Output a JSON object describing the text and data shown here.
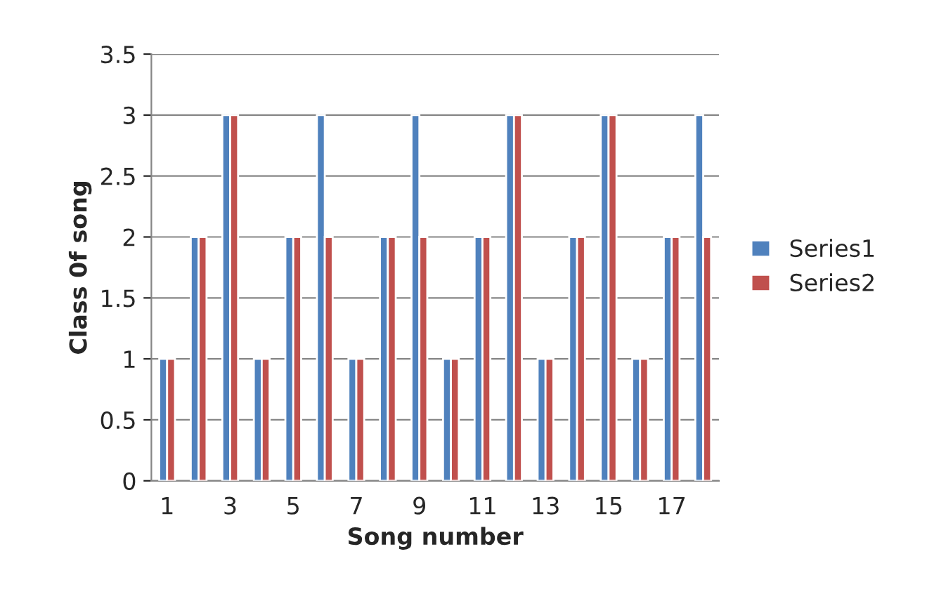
{
  "chart_data": {
    "type": "bar",
    "xlabel": "Song number",
    "ylabel": "Class 0f song",
    "categories": [
      "1",
      null,
      "3",
      null,
      "5",
      null,
      "7",
      null,
      "9",
      null,
      "11",
      null,
      "13",
      null,
      "15",
      null,
      "17",
      null
    ],
    "series": [
      {
        "name": "Series1",
        "color": "#4f81bd",
        "values": [
          1,
          2,
          3,
          1,
          2,
          3,
          1,
          2,
          3,
          1,
          2,
          3,
          1,
          2,
          3,
          1,
          2,
          3
        ]
      },
      {
        "name": "Series2",
        "color": "#c0504d",
        "values": [
          1,
          2,
          3,
          1,
          2,
          2,
          1,
          2,
          2,
          1,
          2,
          3,
          1,
          2,
          3,
          1,
          2,
          2
        ]
      }
    ],
    "ylim": [
      0,
      3.5
    ],
    "yticks": [
      0,
      0.5,
      1,
      1.5,
      2,
      2.5,
      3,
      3.5
    ],
    "grid": "y",
    "legend": "right"
  }
}
